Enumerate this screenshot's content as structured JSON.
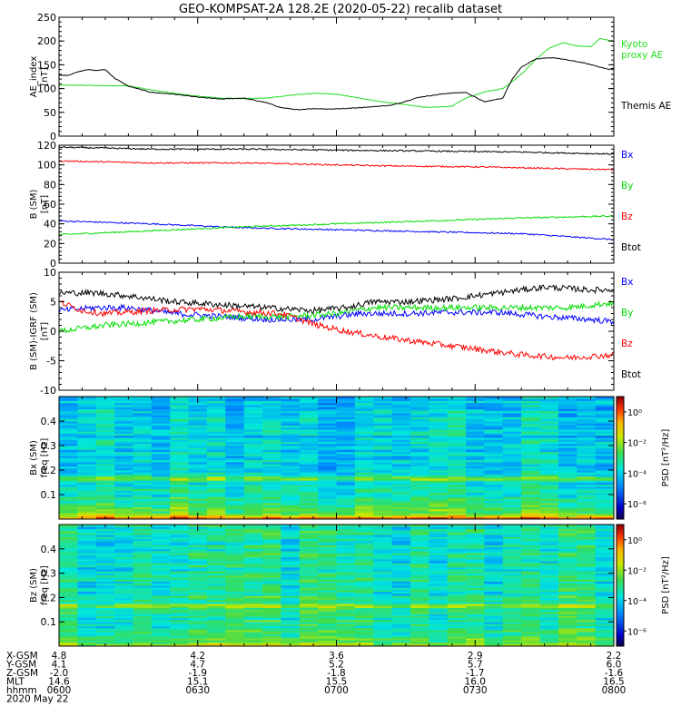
{
  "title": "GEO-KOMPSAT-2A 128.2E (2020-05-22) recalib dataset",
  "colors": {
    "black": "#000000",
    "red": "#ff0000",
    "green": "#00dd00",
    "blue": "#0000ff",
    "kyoto": "#22dd22"
  },
  "time_axis": {
    "start_hhmm": "0600",
    "end_hhmm": "0800",
    "major_minutes": 30,
    "minor_minutes": 5
  },
  "chart_data": [
    {
      "type": "line",
      "ylabel": [
        "AE_index",
        "[nT]"
      ],
      "ylim": [
        0,
        250
      ],
      "yticks": [
        0,
        50,
        100,
        150,
        200,
        250
      ],
      "series": [
        {
          "name": "Kyoto proxy AE",
          "label_lines": [
            "Kyoto",
            "proxy AE"
          ],
          "color": "#22dd22",
          "points": [
            [
              0,
              107
            ],
            [
              5,
              107
            ],
            [
              10,
              106
            ],
            [
              15,
              106
            ],
            [
              20,
              97
            ],
            [
              25,
              90
            ],
            [
              30,
              84
            ],
            [
              35,
              80
            ],
            [
              40,
              79
            ],
            [
              45,
              80
            ],
            [
              50,
              86
            ],
            [
              55,
              90
            ],
            [
              60,
              88
            ],
            [
              65,
              80
            ],
            [
              70,
              72
            ],
            [
              75,
              66
            ],
            [
              80,
              60
            ],
            [
              85,
              63
            ],
            [
              88,
              80
            ],
            [
              92,
              93
            ],
            [
              96,
              100
            ],
            [
              100,
              130
            ],
            [
              103,
              160
            ],
            [
              106,
              185
            ],
            [
              109,
              196
            ],
            [
              112,
              190
            ],
            [
              115,
              188
            ],
            [
              117,
              205
            ],
            [
              120,
              200
            ],
            [
              123,
              210
            ],
            [
              125,
              222
            ],
            [
              127,
              228
            ],
            [
              130,
              218
            ],
            [
              133,
              212
            ]
          ]
        },
        {
          "name": "Themis AE",
          "label_lines": [
            "Themis AE"
          ],
          "color": "#000000",
          "points": [
            [
              0,
              128
            ],
            [
              2,
              128
            ],
            [
              4,
              135
            ],
            [
              6,
              140
            ],
            [
              8,
              138
            ],
            [
              10,
              140
            ],
            [
              12,
              122
            ],
            [
              15,
              105
            ],
            [
              20,
              92
            ],
            [
              25,
              88
            ],
            [
              30,
              82
            ],
            [
              35,
              78
            ],
            [
              40,
              80
            ],
            [
              45,
              70
            ],
            [
              48,
              60
            ],
            [
              52,
              55
            ],
            [
              55,
              58
            ],
            [
              58,
              57
            ],
            [
              62,
              58
            ],
            [
              68,
              62
            ],
            [
              72,
              65
            ],
            [
              78,
              82
            ],
            [
              84,
              90
            ],
            [
              88,
              92
            ],
            [
              90,
              82
            ],
            [
              92,
              72
            ],
            [
              96,
              80
            ],
            [
              98,
              120
            ],
            [
              100,
              145
            ],
            [
              103,
              162
            ],
            [
              107,
              165
            ],
            [
              110,
              160
            ],
            [
              113,
              155
            ],
            [
              116,
              148
            ],
            [
              119,
              140
            ],
            [
              121,
              148
            ],
            [
              124,
              162
            ],
            [
              126,
              168
            ],
            [
              129,
              160
            ],
            [
              133,
              150
            ]
          ]
        }
      ]
    },
    {
      "type": "line",
      "ylabel": [
        "B (SM)",
        "[nT]"
      ],
      "ylim": [
        0,
        120
      ],
      "yticks": [
        0,
        20,
        40,
        60,
        80,
        100,
        120
      ],
      "series": [
        {
          "name": "Bx",
          "color": "#0000ff",
          "points": [
            [
              0,
              43
            ],
            [
              20,
              40
            ],
            [
              40,
              36
            ],
            [
              60,
              34
            ],
            [
              80,
              32
            ],
            [
              100,
              30
            ],
            [
              110,
              27
            ],
            [
              120,
              24
            ],
            [
              133,
              21
            ]
          ]
        },
        {
          "name": "By",
          "color": "#00dd00",
          "points": [
            [
              0,
              29
            ],
            [
              20,
              33
            ],
            [
              40,
              37
            ],
            [
              60,
              40
            ],
            [
              80,
              43
            ],
            [
              100,
              46
            ],
            [
              120,
              48
            ],
            [
              133,
              49
            ]
          ]
        },
        {
          "name": "Bz",
          "color": "#ff0000",
          "points": [
            [
              0,
              104
            ],
            [
              20,
              102
            ],
            [
              40,
              102
            ],
            [
              50,
              101
            ],
            [
              70,
              99
            ],
            [
              90,
              98
            ],
            [
              110,
              96
            ],
            [
              133,
              94
            ]
          ]
        },
        {
          "name": "Btot",
          "color": "#000000",
          "points": [
            [
              0,
              118
            ],
            [
              20,
              116
            ],
            [
              40,
              116
            ],
            [
              60,
              115
            ],
            [
              80,
              114
            ],
            [
              100,
              113
            ],
            [
              120,
              111
            ],
            [
              133,
              110
            ]
          ]
        }
      ]
    },
    {
      "type": "line",
      "ylabel": [
        "B (SM)-IGRF (SM)",
        "[nT]"
      ],
      "ylim": [
        -10,
        10
      ],
      "yticks": [
        -10,
        -5,
        0,
        5,
        10
      ],
      "series": [
        {
          "name": "Bx",
          "color": "#0000ff",
          "points": [
            [
              0,
              3.5
            ],
            [
              8,
              4
            ],
            [
              15,
              4
            ],
            [
              25,
              3
            ],
            [
              35,
              2.5
            ],
            [
              45,
              2
            ],
            [
              55,
              2
            ],
            [
              65,
              3
            ],
            [
              75,
              3
            ],
            [
              85,
              3.2
            ],
            [
              95,
              3.2
            ],
            [
              105,
              2.5
            ],
            [
              115,
              2
            ],
            [
              125,
              1.2
            ],
            [
              133,
              1
            ]
          ]
        },
        {
          "name": "By",
          "color": "#00dd00",
          "points": [
            [
              0,
              0
            ],
            [
              10,
              1
            ],
            [
              20,
              1.5
            ],
            [
              30,
              2
            ],
            [
              40,
              2.5
            ],
            [
              50,
              2.5
            ],
            [
              60,
              3
            ],
            [
              68,
              4
            ],
            [
              80,
              4
            ],
            [
              95,
              4
            ],
            [
              110,
              4
            ],
            [
              122,
              5
            ],
            [
              133,
              4
            ]
          ]
        },
        {
          "name": "Bz",
          "color": "#ff0000",
          "points": [
            [
              0,
              5
            ],
            [
              5,
              3.5
            ],
            [
              10,
              3
            ],
            [
              20,
              3.5
            ],
            [
              30,
              3.8
            ],
            [
              40,
              3.3
            ],
            [
              48,
              3
            ],
            [
              56,
              1
            ],
            [
              62,
              0
            ],
            [
              70,
              -1
            ],
            [
              80,
              -2
            ],
            [
              90,
              -3
            ],
            [
              100,
              -4
            ],
            [
              110,
              -4.5
            ],
            [
              120,
              -4
            ],
            [
              127,
              -4
            ],
            [
              133,
              -5
            ]
          ]
        },
        {
          "name": "Btot",
          "color": "#000000",
          "points": [
            [
              0,
              6.5
            ],
            [
              8,
              6.5
            ],
            [
              15,
              6
            ],
            [
              25,
              5
            ],
            [
              35,
              4.5
            ],
            [
              45,
              4
            ],
            [
              55,
              3.5
            ],
            [
              62,
              4
            ],
            [
              68,
              5
            ],
            [
              75,
              5
            ],
            [
              85,
              5.5
            ],
            [
              95,
              6.5
            ],
            [
              105,
              7.5
            ],
            [
              115,
              7
            ],
            [
              125,
              7
            ],
            [
              133,
              6.5
            ]
          ]
        }
      ]
    },
    {
      "type": "heatmap",
      "ylabel": [
        "Bx (SM)",
        "freq [Hz]"
      ],
      "ylim": [
        0,
        0.5
      ],
      "yticks": [
        0.1,
        0.2,
        0.3,
        0.4
      ],
      "colorbar": {
        "label": "PSD [nT²/Hz]",
        "ticks": [
          "10⁰",
          "10⁻²",
          "10⁻⁴",
          "10⁻⁶"
        ],
        "log_range": [
          -7,
          1
        ]
      },
      "profile": "bx"
    },
    {
      "type": "heatmap",
      "ylabel": [
        "Bz (SM)",
        "freq [Hz]"
      ],
      "ylim": [
        0,
        0.5
      ],
      "yticks": [
        0.1,
        0.2,
        0.3,
        0.4
      ],
      "colorbar": {
        "label": "PSD [nT²/Hz]",
        "ticks": [
          "10⁰",
          "10⁻²",
          "10⁻⁴",
          "10⁻⁶"
        ],
        "log_range": [
          -7,
          1
        ]
      },
      "profile": "bz"
    }
  ],
  "ephemeris": {
    "rows": [
      {
        "label": "X-GSM",
        "values": [
          "4.8",
          "4.2",
          "3.6",
          "2.9",
          "2.2"
        ]
      },
      {
        "label": "Y-GSM",
        "values": [
          "4.1",
          "4.7",
          "5.2",
          "5.7",
          "6.0"
        ]
      },
      {
        "label": "Z-GSM",
        "values": [
          "-2.0",
          "-1.9",
          "-1.8",
          "-1.7",
          "-1.6"
        ]
      },
      {
        "label": "MLT",
        "values": [
          "14.6",
          "15.1",
          "15.5",
          "16.0",
          "16.5"
        ]
      },
      {
        "label": "hhmm",
        "values": [
          "0600",
          "0630",
          "0700",
          "0730",
          "0800"
        ]
      }
    ],
    "date": "2020 May 22"
  }
}
